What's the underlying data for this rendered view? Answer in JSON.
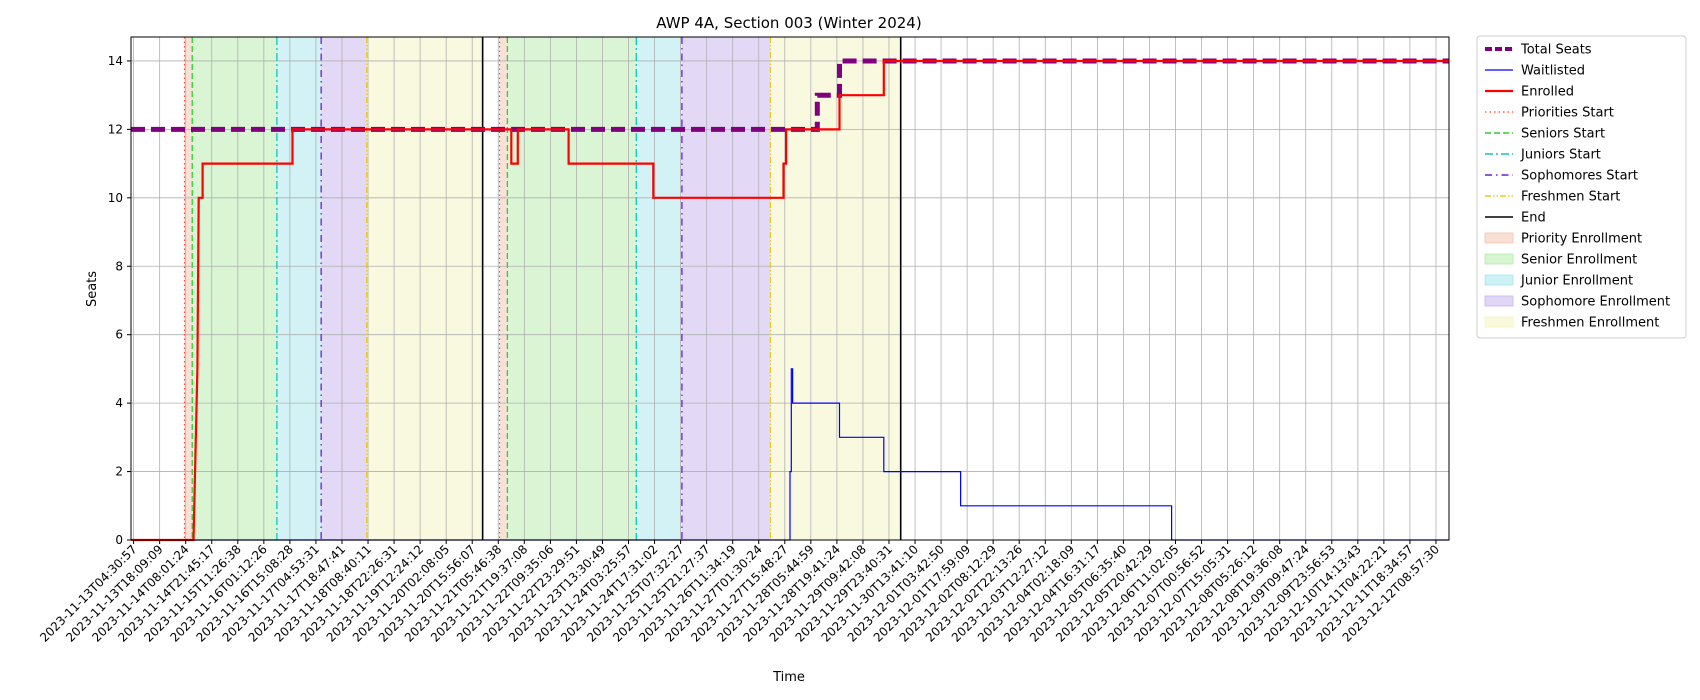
{
  "chart_data": {
    "type": "line",
    "title": "AWP 4A, Section 003 (Winter 2024)",
    "xlabel": "Time",
    "ylabel": "Seats",
    "ylim": [
      0,
      14.7
    ],
    "yticks": [
      0,
      2,
      4,
      6,
      8,
      10,
      12,
      14
    ],
    "grid": true,
    "legend_position": "outside-right",
    "x_tick_labels": [
      "2023-11-13T04:30:57",
      "2023-11-13T18:09:09",
      "2023-11-14T08:01:24",
      "2023-11-14T21:45:17",
      "2023-11-15T11:26:38",
      "2023-11-16T01:12:26",
      "2023-11-16T15:08:28",
      "2023-11-17T04:53:31",
      "2023-11-17T18:47:41",
      "2023-11-18T08:40:11",
      "2023-11-18T22:26:31",
      "2023-11-19T12:24:12",
      "2023-11-20T02:08:05",
      "2023-11-20T15:56:07",
      "2023-11-21T05:46:38",
      "2023-11-21T19:37:08",
      "2023-11-22T09:35:06",
      "2023-11-22T23:29:51",
      "2023-11-23T13:30:49",
      "2023-11-24T03:25:57",
      "2023-11-24T17:31:02",
      "2023-11-25T07:32:27",
      "2023-11-25T21:27:37",
      "2023-11-26T11:34:19",
      "2023-11-27T01:30:24",
      "2023-11-27T15:48:27",
      "2023-11-28T05:44:59",
      "2023-11-28T19:41:24",
      "2023-11-29T09:42:08",
      "2023-11-29T23:40:31",
      "2023-11-30T13:41:10",
      "2023-12-01T03:42:50",
      "2023-12-01T17:59:09",
      "2023-12-02T08:12:29",
      "2023-12-02T22:13:26",
      "2023-12-03T12:27:12",
      "2023-12-04T02:18:09",
      "2023-12-04T16:31:17",
      "2023-12-05T06:35:40",
      "2023-12-05T20:42:29",
      "2023-12-06T11:02:05",
      "2023-12-07T00:56:52",
      "2023-12-07T15:05:31",
      "2023-12-08T05:26:12",
      "2023-12-08T19:36:08",
      "2023-12-09T09:47:24",
      "2023-12-09T23:56:53",
      "2023-12-10T14:13:43",
      "2023-12-11T04:22:21",
      "2023-12-11T18:34:57",
      "2023-12-12T08:57:30"
    ],
    "x_range": [
      -0.1,
      50.5
    ],
    "regions": [
      {
        "name": "Priority Enrollment",
        "start": 1.95,
        "end": 2.25,
        "color": "#f4c4b0"
      },
      {
        "name": "Senior Enrollment",
        "start": 2.25,
        "end": 5.5,
        "color": "#b4ecaa"
      },
      {
        "name": "Junior Enrollment",
        "start": 5.5,
        "end": 7.2,
        "color": "#a6e6ee"
      },
      {
        "name": "Sophomore Enrollment",
        "start": 7.2,
        "end": 8.95,
        "color": "#c8b4ee"
      },
      {
        "name": "Freshmen Enrollment",
        "start": 8.95,
        "end": 13.4,
        "color": "#f4f4c0"
      },
      {
        "name": "Priority Enrollment",
        "start": 14.05,
        "end": 14.35,
        "color": "#f4c4b0"
      },
      {
        "name": "Senior Enrollment",
        "start": 14.35,
        "end": 19.3,
        "color": "#b4ecaa"
      },
      {
        "name": "Junior Enrollment",
        "start": 19.3,
        "end": 21.05,
        "color": "#a6e6ee"
      },
      {
        "name": "Sophomore Enrollment",
        "start": 21.05,
        "end": 24.45,
        "color": "#c8b4ee"
      },
      {
        "name": "Freshmen Enrollment",
        "start": 24.45,
        "end": 29.45,
        "color": "#f4f4c0"
      }
    ],
    "vlines": [
      {
        "name": "Priorities Start",
        "x": 1.95,
        "color": "#ff3b1f",
        "dash": "1.5,3",
        "width": 1
      },
      {
        "name": "Seniors Start",
        "x": 2.25,
        "color": "#2fce2f",
        "dash": "6,3",
        "width": 1.3
      },
      {
        "name": "Juniors Start",
        "x": 5.5,
        "color": "#13c2c2",
        "dash": "8,3,2,3",
        "width": 1.3
      },
      {
        "name": "Sophomores Start",
        "x": 7.2,
        "color": "#6a1fd6",
        "dash": "7,4,1.5,4",
        "width": 1.3
      },
      {
        "name": "Freshmen Start",
        "x": 8.95,
        "color": "#e6cc1f",
        "dash": "6,2,1.5,2,1.5,2",
        "width": 1.3
      },
      {
        "name": "End",
        "x": 13.4,
        "color": "#000000",
        "dash": "",
        "width": 1.6
      },
      {
        "name": "Priorities Start",
        "x": 14.05,
        "color": "#ff3b1f",
        "dash": "1.5,3",
        "width": 1
      },
      {
        "name": "Seniors Start",
        "x": 14.35,
        "color": "#2fce2f",
        "dash": "6,3",
        "width": 1.3
      },
      {
        "name": "Juniors Start",
        "x": 19.3,
        "color": "#13c2c2",
        "dash": "8,3,2,3",
        "width": 1.3
      },
      {
        "name": "Sophomores Start",
        "x": 21.05,
        "color": "#6a1fd6",
        "dash": "7,4,1.5,4",
        "width": 1.3
      },
      {
        "name": "Freshmen Start",
        "x": 24.45,
        "color": "#e6cc1f",
        "dash": "6,2,1.5,2,1.5,2",
        "width": 1.3
      },
      {
        "name": "End",
        "x": 29.45,
        "color": "#000000",
        "dash": "",
        "width": 1.6
      }
    ],
    "series": [
      {
        "name": "Total Seats",
        "color": "#800080",
        "style": "dashed-thick",
        "points": [
          [
            -0.1,
            12
          ],
          [
            26.25,
            12
          ],
          [
            26.25,
            13
          ],
          [
            27.1,
            13
          ],
          [
            27.1,
            14
          ],
          [
            50.5,
            14
          ]
        ]
      },
      {
        "name": "Waitlisted",
        "color": "#0000ff",
        "style": "solid-thin",
        "points": [
          [
            -0.1,
            0
          ],
          [
            25.2,
            0
          ],
          [
            25.2,
            2
          ],
          [
            25.25,
            2
          ],
          [
            25.25,
            5
          ],
          [
            25.3,
            5
          ],
          [
            25.3,
            4
          ],
          [
            27.1,
            4
          ],
          [
            27.1,
            3
          ],
          [
            28.8,
            3
          ],
          [
            28.8,
            2
          ],
          [
            31.75,
            2
          ],
          [
            31.75,
            1
          ],
          [
            39.85,
            1
          ],
          [
            39.85,
            0
          ],
          [
            50.5,
            0
          ]
        ]
      },
      {
        "name": "Enrolled",
        "color": "#ff0000",
        "style": "solid",
        "points": [
          [
            -0.1,
            0
          ],
          [
            2.3,
            0
          ],
          [
            2.45,
            5
          ],
          [
            2.5,
            10
          ],
          [
            2.65,
            10
          ],
          [
            2.65,
            11
          ],
          [
            6.1,
            11
          ],
          [
            6.1,
            12
          ],
          [
            14.5,
            12
          ],
          [
            14.5,
            11
          ],
          [
            14.75,
            11
          ],
          [
            14.75,
            12
          ],
          [
            16.7,
            12
          ],
          [
            16.7,
            11
          ],
          [
            19.95,
            11
          ],
          [
            19.95,
            10
          ],
          [
            24.95,
            10
          ],
          [
            24.95,
            11
          ],
          [
            25.05,
            11
          ],
          [
            25.05,
            12
          ],
          [
            27.1,
            12
          ],
          [
            27.1,
            13
          ],
          [
            28.8,
            13
          ],
          [
            28.8,
            14
          ],
          [
            50.5,
            14
          ]
        ]
      }
    ],
    "legend": [
      {
        "label": "Total Seats",
        "kind": "line",
        "color": "#800080",
        "dash": "7,3",
        "width": 4
      },
      {
        "label": "Waitlisted",
        "kind": "line",
        "color": "#0000ff",
        "dash": "",
        "width": 1.2
      },
      {
        "label": "Enrolled",
        "kind": "line",
        "color": "#ff0000",
        "dash": "",
        "width": 2.2
      },
      {
        "label": "Priorities Start",
        "kind": "line",
        "color": "#ff3b1f",
        "dash": "1.5,3",
        "width": 1.2
      },
      {
        "label": "Seniors Start",
        "kind": "line",
        "color": "#2fce2f",
        "dash": "6,3",
        "width": 1.4
      },
      {
        "label": "Juniors Start",
        "kind": "line",
        "color": "#13c2c2",
        "dash": "8,3,2,3",
        "width": 1.4
      },
      {
        "label": "Sophomores Start",
        "kind": "line",
        "color": "#6a1fd6",
        "dash": "7,4,1.5,4",
        "width": 1.4
      },
      {
        "label": "Freshmen Start",
        "kind": "line",
        "color": "#e6cc1f",
        "dash": "6,2,1.5,2,1.5,2",
        "width": 1.4
      },
      {
        "label": "End",
        "kind": "line",
        "color": "#000000",
        "dash": "",
        "width": 1.6
      },
      {
        "label": "Priority Enrollment",
        "kind": "patch",
        "color": "#f4c4b0"
      },
      {
        "label": "Senior Enrollment",
        "kind": "patch",
        "color": "#b4ecaa"
      },
      {
        "label": "Junior Enrollment",
        "kind": "patch",
        "color": "#a6e6ee"
      },
      {
        "label": "Sophomore Enrollment",
        "kind": "patch",
        "color": "#c8b4ee"
      },
      {
        "label": "Freshmen Enrollment",
        "kind": "patch",
        "color": "#f4f4c0"
      }
    ]
  }
}
